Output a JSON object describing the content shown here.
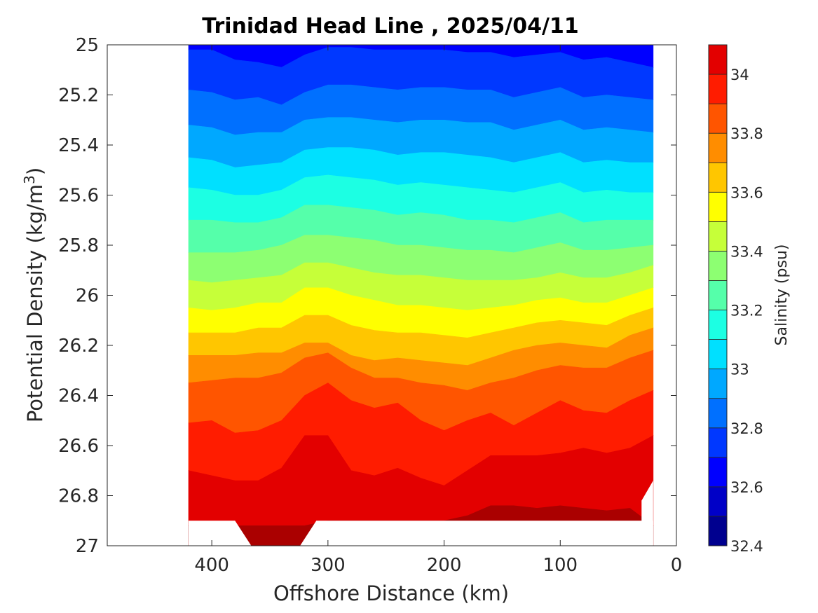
{
  "chart_data": {
    "type": "heatmap",
    "subtype": "filled-contour",
    "title": "Trinidad Head Line , 2025/04/11",
    "xlabel": "Offshore Distance (km)",
    "ylabel_main": "Potential Density (kg/m",
    "ylabel_sup": "3",
    "ylabel_end": ")",
    "xlim": [
      490,
      0
    ],
    "x_reversed": true,
    "ylim": [
      25,
      27
    ],
    "y_reversed": true,
    "x_ticks": [
      400,
      300,
      200,
      100,
      0
    ],
    "x_tick_labels": [
      "400",
      "300",
      "200",
      "100",
      "0"
    ],
    "y_ticks": [
      25,
      25.2,
      25.4,
      25.6,
      25.8,
      26,
      26.2,
      26.4,
      26.6,
      26.8,
      27
    ],
    "y_tick_labels": [
      "25",
      "25.2",
      "25.4",
      "25.6",
      "25.8",
      "26",
      "26.2",
      "26.4",
      "26.6",
      "26.8",
      "27"
    ],
    "data_extent_km": [
      420,
      20
    ],
    "colorbar": {
      "label": "Salinity (psu)",
      "range": [
        32.4,
        34.1
      ],
      "ticks": [
        32.4,
        32.6,
        32.8,
        33,
        33.2,
        33.4,
        33.6,
        33.8,
        34
      ],
      "tick_labels": [
        "32.4",
        "32.6",
        "32.8",
        "33",
        "33.2",
        "33.4",
        "33.6",
        "33.8",
        "34"
      ],
      "level_step": 0.1,
      "colormap": "jet",
      "colors": [
        "#00008f",
        "#0000c7",
        "#0000ff",
        "#0038ff",
        "#0070ff",
        "#00a8ff",
        "#00e0ff",
        "#1cffe3",
        "#55ffaa",
        "#8dff72",
        "#c6ff39",
        "#ffff00",
        "#ffc600",
        "#ff8d00",
        "#ff5500",
        "#ff1c00",
        "#e30000",
        "#aa0000",
        "#800000"
      ]
    },
    "contour_x_km": [
      420,
      400,
      380,
      360,
      340,
      320,
      300,
      280,
      260,
      240,
      220,
      200,
      180,
      160,
      140,
      120,
      100,
      80,
      60,
      40,
      20
    ],
    "contours": [
      {
        "level": 32.7,
        "y": [
          25.02,
          25.02,
          25.06,
          25.07,
          25.09,
          25.04,
          25.01,
          25.01,
          25.02,
          25.02,
          25.02,
          25.02,
          25.03,
          25.03,
          25.05,
          25.04,
          25.03,
          25.06,
          25.05,
          25.07,
          25.09
        ]
      },
      {
        "level": 32.8,
        "y": [
          25.18,
          25.19,
          25.22,
          25.21,
          25.24,
          25.19,
          25.16,
          25.16,
          25.17,
          25.18,
          25.17,
          25.17,
          25.18,
          25.18,
          25.21,
          25.19,
          25.17,
          25.21,
          25.2,
          25.21,
          25.22
        ]
      },
      {
        "level": 32.9,
        "y": [
          25.32,
          25.33,
          25.36,
          25.35,
          25.35,
          25.3,
          25.29,
          25.29,
          25.3,
          25.31,
          25.3,
          25.3,
          25.31,
          25.31,
          25.34,
          25.32,
          25.3,
          25.34,
          25.33,
          25.34,
          25.35
        ]
      },
      {
        "level": 33.0,
        "y": [
          25.45,
          25.46,
          25.49,
          25.48,
          25.47,
          25.42,
          25.41,
          25.41,
          25.42,
          25.44,
          25.43,
          25.43,
          25.44,
          25.45,
          25.47,
          25.45,
          25.43,
          25.47,
          25.46,
          25.47,
          25.47
        ]
      },
      {
        "level": 33.1,
        "y": [
          25.57,
          25.58,
          25.6,
          25.6,
          25.58,
          25.53,
          25.52,
          25.53,
          25.54,
          25.56,
          25.55,
          25.56,
          25.57,
          25.58,
          25.59,
          25.57,
          25.55,
          25.59,
          25.58,
          25.59,
          25.59
        ]
      },
      {
        "level": 33.2,
        "y": [
          25.7,
          25.7,
          25.71,
          25.71,
          25.69,
          25.64,
          25.64,
          25.65,
          25.66,
          25.68,
          25.67,
          25.68,
          25.7,
          25.7,
          25.71,
          25.69,
          25.67,
          25.71,
          25.7,
          25.7,
          25.7
        ]
      },
      {
        "level": 33.3,
        "y": [
          25.83,
          25.83,
          25.83,
          25.82,
          25.8,
          25.76,
          25.76,
          25.77,
          25.78,
          25.8,
          25.8,
          25.81,
          25.82,
          25.82,
          25.83,
          25.81,
          25.79,
          25.82,
          25.82,
          25.81,
          25.8
        ]
      },
      {
        "level": 33.4,
        "y": [
          25.94,
          25.95,
          25.94,
          25.93,
          25.92,
          25.87,
          25.87,
          25.89,
          25.91,
          25.92,
          25.92,
          25.93,
          25.94,
          25.94,
          25.94,
          25.93,
          25.91,
          25.93,
          25.93,
          25.91,
          25.88
        ]
      },
      {
        "level": 33.5,
        "y": [
          26.05,
          26.06,
          26.05,
          26.03,
          26.03,
          25.97,
          25.97,
          26.0,
          26.02,
          26.04,
          26.04,
          26.05,
          26.06,
          26.05,
          26.04,
          26.02,
          26.01,
          26.03,
          26.03,
          26.0,
          25.97
        ]
      },
      {
        "level": 33.6,
        "y": [
          26.15,
          26.15,
          26.15,
          26.13,
          26.13,
          26.08,
          26.08,
          26.12,
          26.14,
          26.15,
          26.15,
          26.16,
          26.17,
          26.15,
          26.13,
          26.11,
          26.1,
          26.11,
          26.12,
          26.08,
          26.05
        ]
      },
      {
        "level": 33.7,
        "y": [
          26.24,
          26.24,
          26.24,
          26.23,
          26.23,
          26.19,
          26.19,
          26.24,
          26.26,
          26.25,
          26.26,
          26.27,
          26.28,
          26.25,
          26.22,
          26.2,
          26.19,
          26.2,
          26.21,
          26.16,
          26.13
        ]
      },
      {
        "level": 33.8,
        "y": [
          26.35,
          26.34,
          26.33,
          26.33,
          26.31,
          26.25,
          26.23,
          26.29,
          26.33,
          26.33,
          26.35,
          26.36,
          26.38,
          26.35,
          26.33,
          26.3,
          26.28,
          26.29,
          26.29,
          26.25,
          26.22
        ]
      },
      {
        "level": 33.9,
        "y": [
          26.51,
          26.5,
          26.55,
          26.54,
          26.5,
          26.4,
          26.35,
          26.42,
          26.45,
          26.43,
          26.5,
          26.54,
          26.5,
          26.47,
          26.52,
          26.47,
          26.42,
          26.46,
          26.47,
          26.42,
          26.38
        ]
      },
      {
        "level": 34.0,
        "y": [
          26.7,
          26.72,
          26.74,
          26.74,
          26.69,
          26.56,
          26.56,
          26.7,
          26.72,
          26.69,
          26.73,
          26.76,
          26.7,
          26.64,
          26.64,
          26.64,
          26.63,
          26.61,
          26.63,
          26.61,
          26.56
        ]
      },
      {
        "level": 34.1,
        "y": [
          26.92,
          26.92,
          26.92,
          26.92,
          26.92,
          26.92,
          26.9,
          26.9,
          26.9,
          26.9,
          26.9,
          26.9,
          26.88,
          26.84,
          26.84,
          26.85,
          26.84,
          26.85,
          26.86,
          26.85,
          26.92
        ]
      }
    ],
    "grid": false,
    "legend": "none"
  }
}
